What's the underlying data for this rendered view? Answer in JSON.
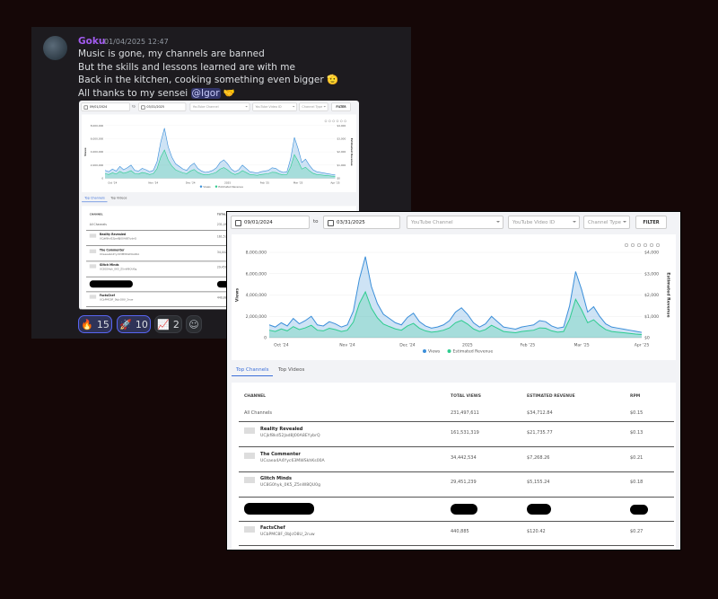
{
  "message": {
    "author": "Goku",
    "timestamp": "01/04/2025 12:47",
    "lines": [
      "Music is gone, my channels are banned",
      "But the skills and lessons learned are with me",
      "Back in the kitchen, cooking something even bigger 🫡"
    ],
    "last_line": "All thanks to my sensei",
    "mention": "@Igor",
    "last_emoji": "🤝"
  },
  "reactions": [
    {
      "emoji": "🔥",
      "count": 15
    },
    {
      "emoji": "🚀",
      "count": 10
    },
    {
      "emoji": "📈",
      "count": 2
    }
  ],
  "dashboard": {
    "filters": {
      "date_from": "09/01/2024",
      "date_sep": "to",
      "date_to": "03/31/2025",
      "channel": "YouTube Channel",
      "video_id": "YouTube Video ID",
      "channel_type": "Channel Type",
      "button": "FILTER"
    },
    "tabs": [
      "Top Channels",
      "Top Videos"
    ],
    "table": {
      "headers": [
        "CHANNEL",
        "TOTAL VIEWS",
        "ESTIMATED REVENUE",
        "RPM"
      ],
      "rows": [
        {
          "name": "All Channels",
          "views": "231,497,611",
          "revenue": "$34,712.84",
          "rpm": "$0.15"
        },
        {
          "name": "Reality Revealed",
          "id": "UCjkf8kd52Jad8J00A8EYybrQ",
          "views": "161,531,319",
          "revenue": "$21,735.77",
          "rpm": "$0.13"
        },
        {
          "name": "The Commenter",
          "id": "UCsaea4A4Yyc63MWSkhKs00A",
          "views": "34,442,534",
          "revenue": "$7,268.26",
          "rpm": "$0.21"
        },
        {
          "name": "Glitch Minds",
          "id": "UC8G0hyk_0K5_Z5nW8QU0g",
          "views": "29,451,239",
          "revenue": "$5,155.24",
          "rpm": "$0.18"
        },
        {
          "name": "FactsChef",
          "id": "UCbPMC8F_0bJcO8U_2ruw",
          "views": "440,885",
          "revenue": "$120.42",
          "rpm": "$0.27"
        }
      ]
    }
  },
  "chart_data": {
    "type": "area",
    "ylabel": "Views",
    "y2label": "Estimated Revenue",
    "categories": [
      null,
      null,
      "Oct '24",
      null,
      null,
      null,
      null,
      null,
      null,
      null,
      null,
      null,
      null,
      "Nov '24",
      null,
      null,
      null,
      null,
      null,
      null,
      null,
      null,
      null,
      "Dec '24",
      null,
      null,
      null,
      null,
      null,
      null,
      null,
      null,
      null,
      "2025",
      null,
      null,
      null,
      null,
      null,
      null,
      null,
      null,
      null,
      "Feb '25",
      null,
      null,
      null,
      null,
      null,
      null,
      null,
      null,
      "Mar '25",
      null,
      null,
      null,
      null,
      null,
      null,
      null,
      null,
      null,
      "Apr '25"
    ],
    "series": [
      {
        "name": "Views",
        "color": "#3b8fd9",
        "values": [
          1200000,
          1000000,
          1400000,
          1100000,
          1800000,
          1300000,
          1600000,
          2000000,
          1200000,
          1100000,
          1500000,
          1300000,
          1000000,
          1200000,
          2500000,
          5500000,
          7600000,
          4800000,
          3200000,
          2200000,
          1800000,
          1400000,
          1200000,
          1900000,
          2300000,
          1500000,
          1100000,
          900000,
          1000000,
          1200000,
          1600000,
          2400000,
          2800000,
          2200000,
          1400000,
          1000000,
          1300000,
          2000000,
          1500000,
          1000000,
          900000,
          800000,
          1000000,
          1100000,
          1200000,
          1600000,
          1500000,
          1100000,
          900000,
          1000000,
          3000000,
          6200000,
          4500000,
          2400000,
          2900000,
          2000000,
          1300000,
          1000000,
          900000,
          800000,
          700000,
          600000,
          500000
        ]
      },
      {
        "name": "Estimated Revenue",
        "color": "#2ecc8f",
        "axis": "y2",
        "values": [
          350,
          290,
          410,
          320,
          520,
          380,
          460,
          580,
          350,
          320,
          440,
          380,
          290,
          350,
          730,
          1600,
          2150,
          1390,
          930,
          640,
          520,
          410,
          350,
          550,
          670,
          440,
          320,
          260,
          290,
          350,
          460,
          700,
          810,
          640,
          410,
          290,
          380,
          580,
          440,
          290,
          260,
          230,
          290,
          320,
          350,
          460,
          440,
          320,
          260,
          290,
          870,
          1800,
          1300,
          700,
          840,
          580,
          380,
          290,
          260,
          230,
          200,
          170,
          150
        ]
      }
    ],
    "ylim": [
      0,
      8000000
    ],
    "yticks": [
      0,
      {
        "value": 2000000,
        "label": "2,000,000"
      },
      {
        "value": 4000000,
        "label": "4,000,000"
      },
      {
        "value": 6000000,
        "label": "6,000,000"
      },
      {
        "value": 8000000,
        "label": "8,000,000"
      }
    ],
    "y2lim": [
      0,
      4000
    ],
    "y2ticks": [
      {
        "value": 0,
        "label": "$0"
      },
      {
        "value": 1000,
        "label": "$1,000"
      },
      {
        "value": 2000,
        "label": "$2,000"
      },
      {
        "value": 3000,
        "label": "$3,000"
      },
      {
        "value": 4000,
        "label": "$4,000"
      }
    ],
    "grid": true,
    "legend": "bottom"
  }
}
